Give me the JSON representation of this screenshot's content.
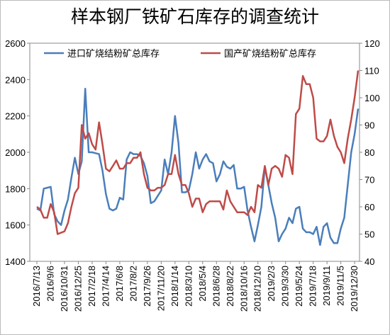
{
  "chart_data": {
    "type": "line",
    "title": "样本钢厂铁矿石库存的调查统计",
    "categories": [
      "2016/7/13",
      null,
      null,
      null,
      "2016/9/6",
      null,
      null,
      null,
      "2016/10/31",
      null,
      null,
      null,
      "2016/12/25",
      null,
      null,
      null,
      "2017/2/18",
      null,
      null,
      null,
      "2017/4/14",
      null,
      null,
      null,
      "2017/6/8",
      null,
      null,
      null,
      "2017/8/2",
      null,
      null,
      null,
      "2017/9/26",
      null,
      null,
      null,
      "2017/11/20",
      null,
      null,
      null,
      "2018/1/14",
      null,
      null,
      null,
      "2018/3/10",
      null,
      null,
      null,
      "2018/5/4",
      null,
      null,
      null,
      "2018/6/28",
      null,
      null,
      null,
      "2018/8/22",
      null,
      null,
      null,
      "2018/10/16",
      null,
      null,
      null,
      "2018/12/10",
      null,
      null,
      null,
      "2019/2/3",
      null,
      null,
      null,
      "2019/3/30",
      null,
      null,
      null,
      "2019/5/24",
      null,
      null,
      null,
      "2019/7/18",
      null,
      null,
      null,
      "2019/9/11",
      null,
      null,
      null,
      "2019/11/5",
      null,
      null,
      null,
      "2019/12/30",
      null
    ],
    "series": [
      {
        "name": "进口矿烧结粉矿总库存",
        "color": "#4a7ebb",
        "values": [
          1690,
          1680,
          1800,
          1805,
          1810,
          1660,
          1620,
          1600,
          1680,
          1740,
          1860,
          1970,
          1880,
          1950,
          2350,
          2000,
          2000,
          1995,
          1990,
          1900,
          1770,
          1690,
          1680,
          1690,
          1750,
          1740,
          1960,
          2000,
          1990,
          1990,
          1980,
          1940,
          1870,
          1720,
          1730,
          1760,
          1790,
          1960,
          1880,
          2000,
          2200,
          2050,
          1780,
          1780,
          1790,
          1880,
          2000,
          1910,
          1960,
          1990,
          1950,
          1940,
          1840,
          1880,
          1950,
          1920,
          1910,
          1930,
          1800,
          1800,
          1810,
          1680,
          1590,
          1510,
          1600,
          1700,
          1920,
          1820,
          1720,
          1640,
          1510,
          1550,
          1580,
          1640,
          1610,
          1690,
          1700,
          1580,
          1560,
          1560,
          1550,
          1590,
          1490,
          1590,
          1610,
          1530,
          1500,
          1500,
          1580,
          1640,
          1820,
          2000,
          2100,
          2240
        ]
      },
      {
        "name": "国产矿烧结粉矿总库存",
        "color": "#be4b48",
        "axis": "y2",
        "values": [
          60,
          59,
          56,
          56,
          61,
          58,
          50,
          50.5,
          51,
          54,
          60,
          65,
          67,
          90,
          85,
          87,
          83,
          81,
          91,
          83,
          74,
          73,
          75,
          77,
          74,
          74,
          76,
          76,
          78,
          78,
          80,
          72,
          67,
          66,
          66,
          67,
          67,
          68,
          72,
          72,
          79,
          72,
          68,
          68,
          65,
          60,
          63,
          63,
          58,
          61,
          62,
          62,
          62,
          62,
          59,
          66,
          62,
          60,
          58,
          58,
          58,
          57,
          60,
          58,
          68,
          67,
          75,
          68,
          74,
          75,
          74,
          71,
          79,
          78,
          72,
          94,
          96,
          108,
          105,
          105,
          100,
          85,
          84,
          84,
          86,
          92,
          86,
          82,
          80,
          76,
          85,
          92,
          100,
          110
        ]
      }
    ],
    "ylim": [
      1400,
      2600
    ],
    "yticks": [
      1400,
      1600,
      1800,
      2000,
      2200,
      2400,
      2600
    ],
    "y2lim": [
      40,
      120
    ],
    "y2ticks": [
      40,
      50,
      60,
      70,
      80,
      90,
      100,
      110,
      120
    ]
  }
}
